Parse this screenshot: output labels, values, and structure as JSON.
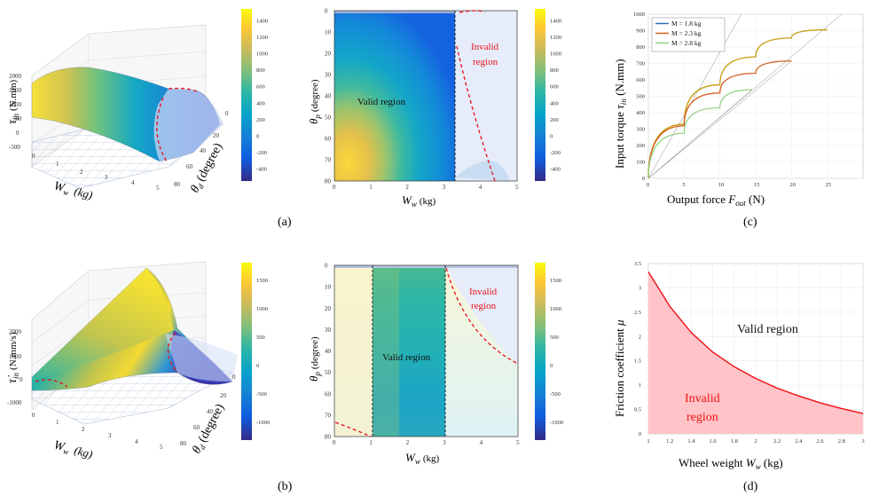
{
  "panel_labels": [
    "(a)",
    "(b)",
    "(c)",
    "(d)"
  ],
  "colors": {
    "parula": [
      "#352a87",
      "#0f5cdd",
      "#1481d6",
      "#06a4ca",
      "#2eb7a4",
      "#87bf77",
      "#d1bb59",
      "#fec832",
      "#f9fb0e"
    ],
    "red_dash": "#e8101a",
    "invalid_fill": "#ffc3c8",
    "invalid_line": "#ee1111",
    "overlay_region": "#e4e8f8",
    "series_c": [
      "#2a73b8",
      "#d4601c",
      "#8fd080"
    ],
    "thin_gray": "#8a8a8a"
  },
  "chart_data": [
    {
      "id": "a3d",
      "type": "surface",
      "ylabel": "τ",
      "ylabel_sub": "in",
      "yunit": "(N.mm)",
      "xlabel": "W",
      "xlabel_sub": "w",
      "xunit": "(kg)",
      "zlabel": "θ",
      "zlabel_sub": "d",
      "zunit": "(degree)",
      "z_ticks": [
        "2000",
        "1500",
        "1000",
        "500",
        "0",
        "-500"
      ],
      "x_ticks": [
        "0",
        "1",
        "2",
        "3",
        "4",
        "5"
      ],
      "d_ticks": [
        "0",
        "20",
        "40",
        "60",
        "80"
      ],
      "colorbar": {
        "ticks": [
          "1400",
          "1200",
          "1000",
          "800",
          "600",
          "400",
          "200",
          "0",
          "-200",
          "-400"
        ],
        "range": [
          -500,
          1550
        ]
      }
    },
    {
      "id": "a2d",
      "type": "heatmap",
      "ylabel": "θ",
      "ylabel_sub": "p",
      "yunit": "(degree)",
      "xlabel": "W",
      "xlabel_sub": "w",
      "xunit": "(kg)",
      "xlim": [
        0,
        5
      ],
      "ylim": [
        0,
        80
      ],
      "x_ticks": [
        "0",
        "1",
        "2",
        "3",
        "4",
        "5"
      ],
      "y_ticks": [
        "0",
        "10",
        "20",
        "30",
        "40",
        "50",
        "60",
        "70",
        "80"
      ],
      "valid_boundary_x": 3.2,
      "annotations": {
        "valid": "Valid region",
        "invalid_1": "Invalid",
        "invalid_2": "region"
      },
      "colorbar": {
        "ticks": [
          "1400",
          "1200",
          "1000",
          "800",
          "600",
          "400",
          "200",
          "0",
          "-200",
          "-400"
        ],
        "range": [
          -500,
          1550
        ]
      }
    },
    {
      "id": "c",
      "type": "line",
      "xlabel": "Output force ",
      "xlabel_var": "F",
      "xlabel_sub": "out",
      "xunit": " (N)",
      "ylabel": "Input torque ",
      "ylabel_var": "τ",
      "ylabel_sub": "in",
      "yunit": " (N.mm)",
      "xlim": [
        0,
        30
      ],
      "ylim": [
        0,
        1000
      ],
      "x_ticks": [
        "0",
        "5",
        "10",
        "15",
        "20",
        "25"
      ],
      "y_ticks": [
        "0",
        "100",
        "200",
        "300",
        "400",
        "500",
        "600",
        "700",
        "800",
        "900",
        "1000"
      ],
      "series": [
        {
          "name": "M = 1.8 kg",
          "x": [
            0,
            25
          ],
          "y": [
            0,
            905
          ],
          "kind": "gray"
        },
        {
          "name": "M = 2.3 kg",
          "x": [
            0,
            5,
            10,
            15,
            20
          ],
          "y": [
            0,
            320,
            520,
            640,
            715
          ]
        },
        {
          "name": "M = 2.8 kg",
          "x": [
            0,
            5,
            10,
            14.5
          ],
          "y": [
            0,
            275,
            430,
            540
          ]
        }
      ],
      "main_series": {
        "name": "M = 1.8 kg",
        "x": [
          0,
          5,
          10,
          15,
          20,
          25
        ],
        "y": [
          0,
          330,
          570,
          740,
          855,
          905
        ]
      }
    },
    {
      "id": "d",
      "type": "area",
      "xlabel": "Wheel weight ",
      "xlabel_var": "W",
      "xlabel_sub": "w",
      "xunit": " (kg)",
      "ylabel": "Friction coefficient ",
      "ylabel_var": "μ",
      "xlim": [
        1,
        3
      ],
      "ylim": [
        0,
        3.5
      ],
      "x_ticks": [
        "1",
        "1.2",
        "1.4",
        "1.6",
        "1.8",
        "2",
        "2.2",
        "2.4",
        "2.6",
        "2.8",
        "3"
      ],
      "y_ticks": [
        "0",
        "0.5",
        "1",
        "1.5",
        "2",
        "2.5",
        "3",
        "3.5"
      ],
      "x": [
        1.0,
        1.2,
        1.4,
        1.6,
        1.8,
        2.0,
        2.2,
        2.4,
        2.6,
        2.8,
        3.0
      ],
      "y": [
        3.33,
        2.62,
        2.08,
        1.68,
        1.38,
        1.14,
        0.94,
        0.78,
        0.64,
        0.52,
        0.42
      ],
      "annotations": {
        "valid": "Valid region",
        "invalid_1": "Invalid",
        "invalid_2": "region"
      }
    },
    {
      "id": "b3d",
      "type": "surface",
      "ylabel": "τ̇",
      "ylabel_sub": "in",
      "yunit": "(N.mm/s)",
      "xlabel": "W",
      "xlabel_sub": "w",
      "xunit": "(kg)",
      "zlabel": "θ",
      "zlabel_sub": "d",
      "zunit": "(degree)",
      "z_ticks": [
        "2000",
        "1000",
        "0",
        "-1000"
      ],
      "x_ticks": [
        "0",
        "1",
        "2",
        "3",
        "4",
        "5"
      ],
      "d_ticks": [
        "0",
        "20",
        "40",
        "60",
        "80"
      ],
      "colorbar": {
        "ticks": [
          "1500",
          "1000",
          "500",
          "0",
          "-500",
          "-1000"
        ],
        "range": [
          -1100,
          1600
        ]
      }
    },
    {
      "id": "b2d",
      "type": "heatmap",
      "ylabel": "θ",
      "ylabel_sub": "p",
      "yunit": "(degree)",
      "xlabel": "W",
      "xlabel_sub": "w",
      "xunit": "(kg)",
      "xlim": [
        0,
        5
      ],
      "ylim": [
        0,
        80
      ],
      "x_ticks": [
        "0",
        "1",
        "2",
        "3",
        "4",
        "5"
      ],
      "y_ticks": [
        "0",
        "10",
        "20",
        "30",
        "40",
        "50",
        "60",
        "70",
        "80"
      ],
      "valid_range_x": [
        1.0,
        3.0
      ],
      "annotations": {
        "valid": "Valid region",
        "invalid_1": "Invalid",
        "invalid_2": "region"
      },
      "colorbar": {
        "ticks": [
          "1500",
          "1000",
          "500",
          "0",
          "-500",
          "-1000"
        ],
        "range": [
          -1100,
          1600
        ]
      }
    }
  ]
}
